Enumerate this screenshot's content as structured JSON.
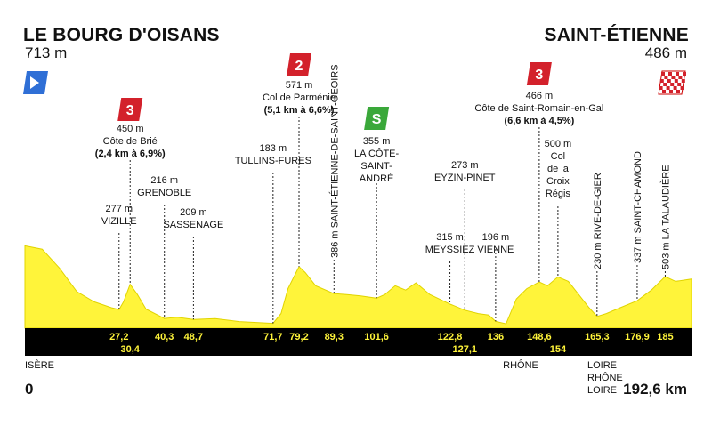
{
  "start": {
    "name": "LE BOURG D'OISANS",
    "altitude": "713 m",
    "km": "0",
    "flag_color": "#2f6fd6"
  },
  "finish": {
    "name": "SAINT-ÉTIENNE",
    "altitude": "486 m",
    "km": "192,6 km"
  },
  "climbs": [
    {
      "cat": "3",
      "color": "#d3212b",
      "alt": "450 m",
      "name": "Côte de Brié",
      "detail": "(2,4 km à 6,9%)",
      "km": 30.4
    },
    {
      "cat": "2",
      "color": "#d3212b",
      "alt": "571 m",
      "name": "Col de Parménie",
      "detail": "(5,1 km à 6,6%)",
      "km": 79.2
    },
    {
      "cat": "S",
      "color": "#3aa83a",
      "alt": "355 m",
      "name": "LA CÔTE-SAINT-ANDRÉ",
      "km": 101.6
    },
    {
      "cat": "3",
      "color": "#d3212b",
      "alt": "466 m",
      "name": "Côte de Saint-Romain-en-Gal",
      "detail": "(6,6 km à 4,5%)",
      "km": 148.6
    }
  ],
  "waypoints": [
    {
      "alt": "277 m",
      "name": "VIZILLE",
      "km": 27.2
    },
    {
      "alt": "216 m",
      "name": "GRENOBLE",
      "km": 40.3
    },
    {
      "alt": "209 m",
      "name": "SASSENAGE",
      "km": 48.7
    },
    {
      "alt": "183 m",
      "name": "TULLINS-FURES",
      "km": 71.7
    },
    {
      "alt": "386 m",
      "name": "SAINT-ÉTIENNE-DE-SAINT-GEOIRS",
      "km": 89.3
    },
    {
      "alt": "315 m",
      "name": "MEYSSIEZ",
      "km": 122.8
    },
    {
      "alt": "273 m",
      "name": "EYZIN-PINET",
      "km": 127.1
    },
    {
      "alt": "196 m",
      "name": "VIENNE",
      "km": 136
    },
    {
      "alt": "500 m",
      "name": "Col de la Croix Régis",
      "km": 154
    },
    {
      "alt": "230 m",
      "name": "RIVE-DE-GIER",
      "km": 165.3
    },
    {
      "alt": "337 m",
      "name": "SAINT-CHAMOND",
      "km": 176.9
    },
    {
      "alt": "503 m",
      "name": "LA TALAUDIÈRE",
      "km": 185
    }
  ],
  "km_labels_top": [
    "27,2",
    "40,3",
    "48,7",
    "71,7",
    "79,2",
    "89,3",
    "101,6",
    "122,8",
    "136",
    "148,6",
    "165,3",
    "176,9",
    "185"
  ],
  "km_labels_bottom": [
    "30,4",
    "127,1",
    "154"
  ],
  "regions": [
    {
      "name": "ISÈRE",
      "km": 0
    },
    {
      "name": "RHÔNE",
      "km": 148.6
    },
    {
      "name": "LOIRE",
      "km": 165.3
    },
    {
      "name": "RHÔNE",
      "km": 165.3
    },
    {
      "name": "LOIRE",
      "km": 165.3
    }
  ],
  "chart_data": {
    "type": "area",
    "x_unit": "km",
    "y_unit": "m",
    "xlim": [
      0,
      192.6
    ],
    "x": [
      0,
      5,
      10,
      15,
      20,
      25,
      27.2,
      28.5,
      30.4,
      32.5,
      35,
      40.3,
      44,
      48.7,
      55,
      62,
      71.7,
      74,
      76,
      79.2,
      81,
      84,
      89.3,
      93,
      97,
      101.6,
      104,
      107,
      110,
      113,
      117,
      122.8,
      127.1,
      131,
      134,
      136,
      139,
      142,
      145,
      148.6,
      151,
      154,
      157,
      160,
      163,
      165.3,
      168,
      172,
      176.9,
      181,
      185,
      188,
      192.6
    ],
    "y": [
      713,
      690,
      560,
      400,
      330,
      290,
      277,
      330,
      450,
      380,
      280,
      216,
      225,
      209,
      215,
      195,
      183,
      250,
      420,
      571,
      530,
      440,
      386,
      380,
      370,
      355,
      380,
      440,
      410,
      460,
      380,
      315,
      273,
      250,
      240,
      196,
      180,
      350,
      420,
      466,
      440,
      500,
      470,
      380,
      290,
      230,
      250,
      290,
      337,
      410,
      503,
      470,
      486
    ]
  }
}
